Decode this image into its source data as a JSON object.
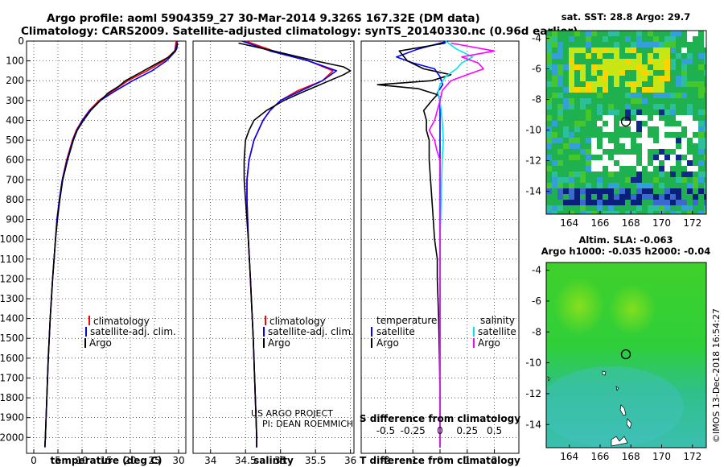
{
  "header": {
    "title_line1": "Argo profile: aoml 5904359_27 30-Mar-2014 9.326S 167.32E (DM data)",
    "title_line2": "Climatology: CARS2009. Satellite-adjusted climatology: synTS_20140330.nc (0.96d earlier)"
  },
  "colors": {
    "climatology": "#ff0000",
    "satellite": "#0000ff",
    "argo": "#000000",
    "satellite_salinity": "#00e5ee",
    "argo_salinity": "#ff00ff"
  },
  "credits": {
    "project": "US ARGO PROJECT",
    "pi": "PI: DEAN ROEMMICH",
    "stamp": "©IMOS 13-Dec-2018 16:54:27"
  },
  "chart_data": [
    {
      "type": "line",
      "name": "temperature-profile",
      "xlabel": "temperature (deg C)",
      "ylabel": "depth (m)",
      "xlim": [
        -1.5,
        31.5
      ],
      "ylim": [
        2080,
        0
      ],
      "xticks": [
        0,
        5,
        10,
        15,
        20,
        25,
        30
      ],
      "yticks": [
        0,
        100,
        200,
        300,
        400,
        500,
        600,
        700,
        800,
        900,
        1000,
        1100,
        1200,
        1300,
        1400,
        1500,
        1600,
        1700,
        1800,
        1900,
        2000
      ],
      "legend": [
        "climatology",
        "satellite-adj. clim.",
        "Argo"
      ],
      "series": [
        {
          "name": "climatology",
          "color": "#ff0000",
          "depth": [
            0,
            50,
            100,
            150,
            200,
            250,
            300,
            350,
            400,
            450,
            500,
            600,
            700,
            800,
            900,
            1000,
            1200,
            1400,
            1600,
            1800,
            2000,
            2050
          ],
          "values": [
            29.5,
            29.2,
            27.0,
            23.5,
            19.5,
            16.5,
            13.5,
            11.5,
            10.0,
            8.8,
            8.0,
            6.8,
            5.9,
            5.3,
            4.8,
            4.5,
            3.9,
            3.4,
            3.0,
            2.7,
            2.4,
            2.3
          ]
        },
        {
          "name": "satellite-adj. clim.",
          "color": "#0000ff",
          "depth": [
            0,
            50,
            100,
            150,
            200,
            250,
            300,
            350,
            400,
            450,
            500,
            600,
            700,
            800,
            900,
            1000,
            1200,
            1400,
            1600,
            1800,
            2000,
            2050
          ],
          "values": [
            29.7,
            29.4,
            27.5,
            24.5,
            20.5,
            17.0,
            13.8,
            11.6,
            10.1,
            8.9,
            8.1,
            6.9,
            5.9,
            5.3,
            4.8,
            4.5,
            3.9,
            3.4,
            3.0,
            2.7,
            2.4,
            2.3
          ]
        },
        {
          "name": "Argo",
          "color": "#000000",
          "depth": [
            10,
            40,
            80,
            120,
            160,
            200,
            230,
            260,
            300,
            350,
            400,
            450,
            500,
            600,
            700,
            800,
            900,
            1000,
            1200,
            1400,
            1600,
            1800,
            2000,
            2050
          ],
          "values": [
            29.8,
            29.6,
            28.0,
            25.0,
            22.0,
            19.0,
            17.5,
            15.5,
            13.8,
            11.8,
            10.3,
            9.0,
            8.2,
            7.0,
            6.0,
            5.4,
            4.9,
            4.5,
            3.9,
            3.4,
            3.0,
            2.7,
            2.4,
            2.3
          ]
        }
      ]
    },
    {
      "type": "line",
      "name": "salinity-profile",
      "xlabel": "salinity",
      "xlim": [
        33.75,
        36.05
      ],
      "ylim": [
        2080,
        0
      ],
      "xticks": [
        34,
        34.5,
        35,
        35.5,
        36
      ],
      "legend": [
        "climatology",
        "satellite-adj. clim.",
        "Argo"
      ],
      "series": [
        {
          "name": "climatology",
          "color": "#ff0000",
          "depth": [
            0,
            50,
            100,
            150,
            200,
            250,
            300,
            350,
            400,
            500,
            600,
            700,
            800,
            1000,
            1200,
            1500,
            1800,
            2000,
            2050
          ],
          "values": [
            34.5,
            34.9,
            35.4,
            35.75,
            35.6,
            35.25,
            35.0,
            34.85,
            34.75,
            34.62,
            34.55,
            34.52,
            34.52,
            34.54,
            34.57,
            34.61,
            34.64,
            34.66,
            34.66
          ]
        },
        {
          "name": "satellite-adj. clim.",
          "color": "#0000ff",
          "depth": [
            0,
            50,
            100,
            150,
            200,
            250,
            300,
            350,
            400,
            500,
            600,
            700,
            800,
            1000,
            1200,
            1500,
            1800,
            2000,
            2050
          ],
          "values": [
            34.45,
            34.85,
            35.4,
            35.8,
            35.6,
            35.3,
            35.0,
            34.85,
            34.75,
            34.62,
            34.55,
            34.52,
            34.52,
            34.54,
            34.57,
            34.61,
            34.64,
            34.66,
            34.66
          ]
        },
        {
          "name": "Argo",
          "color": "#000000",
          "depth": [
            10,
            50,
            100,
            130,
            150,
            170,
            200,
            230,
            260,
            300,
            350,
            400,
            450,
            500,
            600,
            700,
            800,
            1000,
            1200,
            1500,
            1800,
            2000,
            2050
          ],
          "values": [
            34.4,
            34.9,
            35.5,
            35.9,
            36.0,
            35.9,
            35.7,
            35.5,
            35.3,
            35.05,
            34.8,
            34.62,
            34.55,
            34.5,
            34.48,
            34.48,
            34.5,
            34.54,
            34.57,
            34.61,
            34.64,
            34.66,
            34.66
          ]
        }
      ]
    },
    {
      "type": "line",
      "name": "difference-profile",
      "xlabel": "T difference from climatology",
      "top_axis_label": "S difference from climatology",
      "xlim": [
        -2.9,
        2.9
      ],
      "ylim": [
        2080,
        0
      ],
      "xticks": [
        -2,
        -1,
        0,
        1,
        2
      ],
      "top_xticks": [
        "-0.5",
        "-0.25",
        "0",
        "0.25",
        "0.5"
      ],
      "legend_temperature_title": "temperature",
      "legend_salinity_title": "salinity",
      "legend": [
        "satellite",
        "Argo",
        "satellite",
        "Argo"
      ],
      "series": [
        {
          "name": "temperature satellite",
          "color": "#0000ff",
          "depth": [
            0,
            40,
            80,
            110,
            140,
            180,
            220,
            260,
            300,
            400,
            600,
            800,
            1000,
            1500,
            2050
          ],
          "values": [
            0.3,
            -0.8,
            -1.6,
            -1.0,
            -0.2,
            0.0,
            0.1,
            -0.1,
            0.0,
            0.0,
            0.0,
            0.0,
            0.0,
            0.0,
            0.0
          ]
        },
        {
          "name": "temperature Argo",
          "color": "#000000",
          "depth": [
            10,
            50,
            100,
            140,
            170,
            200,
            220,
            240,
            270,
            300,
            350,
            400,
            450,
            500,
            600,
            700,
            800,
            900,
            1000,
            1100,
            1200,
            1400,
            1600,
            1800,
            2050
          ],
          "values": [
            0.2,
            -1.5,
            -1.2,
            -0.6,
            0.4,
            -0.3,
            -2.3,
            -0.8,
            -0.1,
            -0.3,
            -0.6,
            -0.5,
            -0.5,
            -0.4,
            -0.4,
            -0.35,
            -0.3,
            -0.25,
            -0.2,
            -0.1,
            -0.1,
            -0.05,
            -0.02,
            0.0,
            0.0
          ]
        },
        {
          "name": "salinity satellite",
          "color": "#00e5ee",
          "depth": [
            0,
            40,
            80,
            110,
            140,
            180,
            220,
            260,
            300,
            400,
            500,
            600,
            800,
            1000,
            1500,
            2050
          ],
          "values": [
            0.05,
            0.15,
            0.3,
            0.2,
            0.15,
            0.05,
            0.0,
            -0.02,
            0.0,
            0.02,
            0.03,
            0.02,
            0.01,
            0.0,
            0.0,
            0.0
          ]
        },
        {
          "name": "salinity Argo",
          "color": "#ff00ff",
          "depth": [
            10,
            50,
            80,
            110,
            140,
            170,
            200,
            250,
            300,
            400,
            450,
            500,
            550,
            600,
            700,
            800,
            1000,
            1200,
            1500,
            2050
          ],
          "values": [
            0.1,
            0.5,
            0.2,
            0.35,
            0.4,
            0.25,
            0.1,
            0.02,
            0.0,
            -0.05,
            -0.1,
            -0.05,
            -0.03,
            0.0,
            0.0,
            0.0,
            0.0,
            0.0,
            0.0,
            0.0
          ]
        }
      ]
    },
    {
      "type": "heatmap",
      "name": "sst-map",
      "title": "sat. SST: 28.8 Argo: 29.7",
      "xticks": [
        164,
        166,
        168,
        170,
        172
      ],
      "yticks": [
        -4,
        -6,
        -8,
        -10,
        -12,
        -14
      ],
      "xlim": [
        162.5,
        172.9
      ],
      "ylim": [
        -15.5,
        -3.5
      ],
      "argo_position": {
        "lon": 167.32,
        "lat": -9.326
      }
    },
    {
      "type": "heatmap",
      "name": "sla-map",
      "title_line1": "Altim. SLA: -0.063",
      "title_line2": "Argo h1000: -0.035 h2000: -0.04",
      "xticks": [
        164,
        166,
        168,
        170,
        172
      ],
      "yticks": [
        -4,
        -6,
        -8,
        -10,
        -12,
        -14
      ],
      "xlim": [
        162.5,
        172.9
      ],
      "ylim": [
        -15.5,
        -3.5
      ],
      "argo_position": {
        "lon": 167.32,
        "lat": -9.326
      }
    }
  ]
}
